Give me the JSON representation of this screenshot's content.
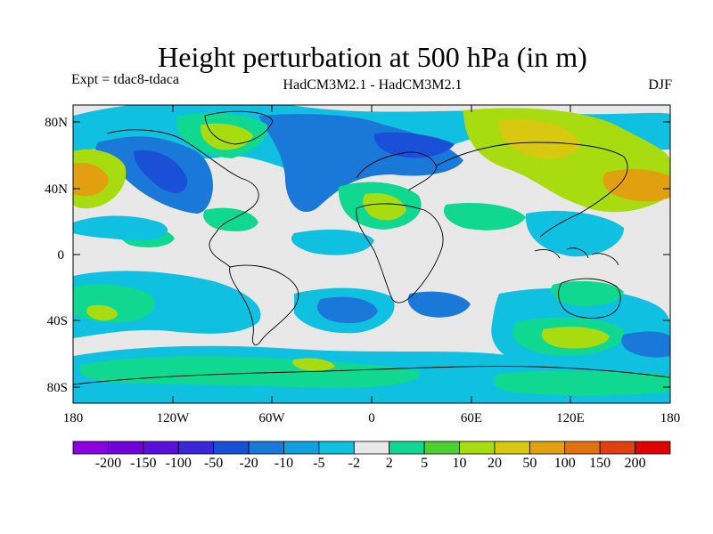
{
  "title": "Height perturbation at 500 hPa (in m)",
  "experiment": "Expt = tdac8-tdaca",
  "models": "HadCM3M2.1 - HadCM3M2.1",
  "season": "DJF",
  "lat_labels": [
    "80N",
    "40N",
    "0",
    "40S",
    "80S"
  ],
  "lon_labels": [
    "180",
    "120W",
    "60W",
    "0",
    "60E",
    "120E",
    "180"
  ],
  "colorbar": {
    "colors": [
      "#8a00e0",
      "#7000dc",
      "#5a10dc",
      "#3a28d8",
      "#1a50d8",
      "#1a78d8",
      "#10a0e0",
      "#10c0e0",
      "#e8e8e8",
      "#10d890",
      "#50d030",
      "#a8dc10",
      "#d8c810",
      "#e0a010",
      "#e07010",
      "#e04010",
      "#e00000"
    ],
    "labels": [
      "-200",
      "-150",
      "-100",
      "-50",
      "-20",
      "-10",
      "-5",
      "-2",
      "2",
      "5",
      "10",
      "20",
      "50",
      "100",
      "150",
      "200"
    ]
  },
  "palette": {
    "lightblue": "#10c0e0",
    "midblue": "#1a78d8",
    "darkblue": "#1a50d8",
    "deepblue": "#3a28d8",
    "green": "#10d890",
    "lime": "#50d030",
    "yellowgreen": "#a8dc10",
    "yellow": "#d8c810",
    "orange": "#e0a010",
    "neutral": "#e8e8e8"
  }
}
